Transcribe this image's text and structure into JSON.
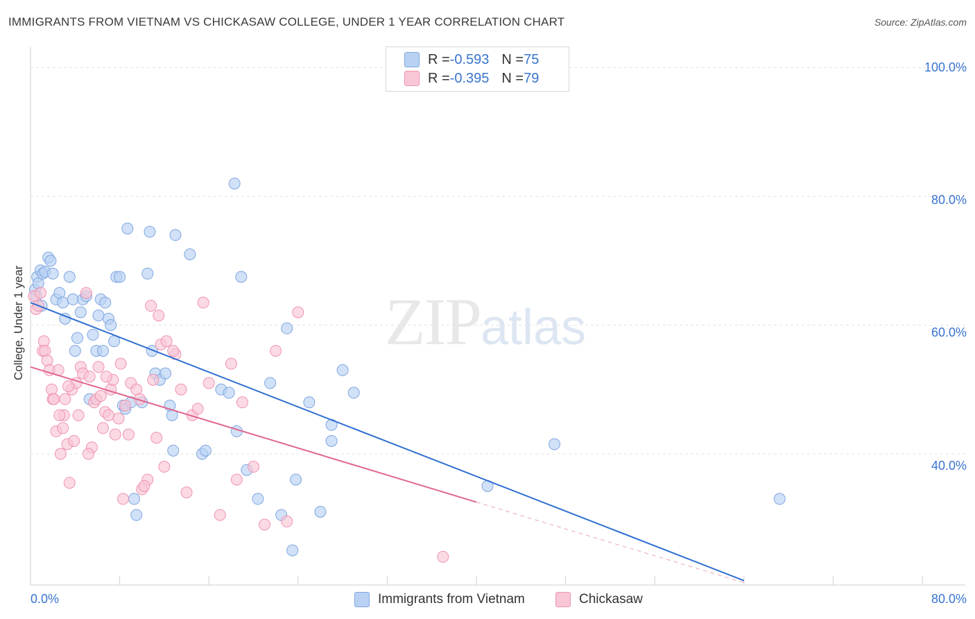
{
  "header": {
    "title": "IMMIGRANTS FROM VIETNAM VS CHICKASAW COLLEGE, UNDER 1 YEAR CORRELATION CHART",
    "source": "Source: ZipAtlas.com"
  },
  "watermark": {
    "zip": "ZIP",
    "atlas": "atlas"
  },
  "legend": {
    "rows": [
      {
        "r_label": "R = ",
        "r_value": "-0.593",
        "n_label": "N = ",
        "n_value": "75",
        "color": "#b9d1f2",
        "border": "#7ea6e0"
      },
      {
        "r_label": "R = ",
        "r_value": "-0.395",
        "n_label": "N = ",
        "n_value": "79",
        "color": "#f9c6d6",
        "border": "#ef93b2"
      }
    ]
  },
  "bottom_legend": {
    "series1": "Immigrants from Vietnam",
    "series2": "Chickasaw"
  },
  "axes": {
    "x_min_label": "0.0%",
    "x_max_label": "80.0%",
    "ylabel": "College, Under 1 year",
    "y_ticks": [
      "100.0%",
      "80.0%",
      "60.0%",
      "40.0%"
    ]
  },
  "chart_data": {
    "type": "scatter",
    "xlabel": "",
    "ylabel": "College, Under 1 year",
    "xlim": [
      0,
      80
    ],
    "ylim": [
      20,
      105
    ],
    "y_ticks": [
      40,
      60,
      80,
      100
    ],
    "grid": true,
    "legend_position": "top-center",
    "series": [
      {
        "name": "Immigrants from Vietnam",
        "color": "#7ea6e0",
        "fill": "#b9d1f2",
        "trend": {
          "x": [
            0,
            64
          ],
          "y": [
            63.5,
            20.3
          ],
          "color": "#2f6fd0"
        },
        "points": [
          [
            0.4,
            65.5
          ],
          [
            0.5,
            64.5
          ],
          [
            0.6,
            67.5
          ],
          [
            0.7,
            66.5
          ],
          [
            0.9,
            68.5
          ],
          [
            1.1,
            68.0
          ],
          [
            1.3,
            68.3
          ],
          [
            1.6,
            70.5
          ],
          [
            1.8,
            70.0
          ],
          [
            2.0,
            68.0
          ],
          [
            2.3,
            64.0
          ],
          [
            2.6,
            65.0
          ],
          [
            2.9,
            63.5
          ],
          [
            3.1,
            61.0
          ],
          [
            3.5,
            67.5
          ],
          [
            3.8,
            64.0
          ],
          [
            4.0,
            56.0
          ],
          [
            4.2,
            58.0
          ],
          [
            4.5,
            62.0
          ],
          [
            4.7,
            64.0
          ],
          [
            5.0,
            64.5
          ],
          [
            5.3,
            48.5
          ],
          [
            5.6,
            58.5
          ],
          [
            5.9,
            56.0
          ],
          [
            6.1,
            61.5
          ],
          [
            6.3,
            64.0
          ],
          [
            6.5,
            56.0
          ],
          [
            6.7,
            63.5
          ],
          [
            7.0,
            61.0
          ],
          [
            7.2,
            60.0
          ],
          [
            7.5,
            57.5
          ],
          [
            7.7,
            67.5
          ],
          [
            8.0,
            67.5
          ],
          [
            8.3,
            47.5
          ],
          [
            8.5,
            47.0
          ],
          [
            8.7,
            75.0
          ],
          [
            9.0,
            48.0
          ],
          [
            9.3,
            33.0
          ],
          [
            9.5,
            30.5
          ],
          [
            10.0,
            48.0
          ],
          [
            10.5,
            68.0
          ],
          [
            10.7,
            74.5
          ],
          [
            10.9,
            56.0
          ],
          [
            11.2,
            52.5
          ],
          [
            11.6,
            51.5
          ],
          [
            12.1,
            52.5
          ],
          [
            12.5,
            47.5
          ],
          [
            12.7,
            46.0
          ],
          [
            12.8,
            40.5
          ],
          [
            13.0,
            74.0
          ],
          [
            14.3,
            71.0
          ],
          [
            15.4,
            40.0
          ],
          [
            15.7,
            40.5
          ],
          [
            17.1,
            50.0
          ],
          [
            17.8,
            49.5
          ],
          [
            18.3,
            82.0
          ],
          [
            18.5,
            43.5
          ],
          [
            18.9,
            67.5
          ],
          [
            19.4,
            37.5
          ],
          [
            20.4,
            33.0
          ],
          [
            21.5,
            51.0
          ],
          [
            22.5,
            30.5
          ],
          [
            23.0,
            59.5
          ],
          [
            23.5,
            25.0
          ],
          [
            23.8,
            36.0
          ],
          [
            25.0,
            48.0
          ],
          [
            26.0,
            31.0
          ],
          [
            27.0,
            44.5
          ],
          [
            27.0,
            42.0
          ],
          [
            28.0,
            53.0
          ],
          [
            29.0,
            49.5
          ],
          [
            41.0,
            35.0
          ],
          [
            47.0,
            41.5
          ],
          [
            67.2,
            33.0
          ],
          [
            1.0,
            63.0
          ]
        ]
      },
      {
        "name": "Chickasaw",
        "color": "#ef93b2",
        "fill": "#f9c6d6",
        "trend": {
          "x": [
            0,
            40
          ],
          "y": [
            53.5,
            32.5
          ],
          "color": "#e0668f",
          "dash_to": [
            64,
            20
          ]
        },
        "points": [
          [
            0.3,
            64.5
          ],
          [
            0.5,
            62.5
          ],
          [
            0.7,
            63.0
          ],
          [
            0.9,
            65.0
          ],
          [
            1.1,
            56.0
          ],
          [
            1.2,
            57.5
          ],
          [
            1.3,
            56.0
          ],
          [
            1.5,
            54.5
          ],
          [
            1.7,
            53.0
          ],
          [
            1.9,
            50.0
          ],
          [
            2.0,
            48.5
          ],
          [
            2.1,
            48.5
          ],
          [
            2.3,
            43.5
          ],
          [
            2.5,
            53.0
          ],
          [
            2.7,
            40.0
          ],
          [
            2.9,
            44.0
          ],
          [
            3.0,
            46.0
          ],
          [
            3.1,
            48.5
          ],
          [
            3.3,
            41.5
          ],
          [
            3.5,
            35.5
          ],
          [
            3.7,
            50.0
          ],
          [
            3.9,
            42.0
          ],
          [
            4.1,
            51.0
          ],
          [
            4.3,
            46.0
          ],
          [
            4.5,
            53.5
          ],
          [
            4.7,
            52.5
          ],
          [
            5.0,
            65.0
          ],
          [
            5.3,
            52.0
          ],
          [
            5.5,
            41.0
          ],
          [
            5.7,
            48.0
          ],
          [
            5.9,
            48.5
          ],
          [
            6.1,
            53.5
          ],
          [
            6.3,
            49.0
          ],
          [
            6.5,
            44.0
          ],
          [
            6.7,
            46.5
          ],
          [
            7.0,
            46.0
          ],
          [
            7.2,
            50.0
          ],
          [
            7.4,
            51.5
          ],
          [
            7.6,
            43.0
          ],
          [
            7.9,
            45.5
          ],
          [
            8.1,
            54.0
          ],
          [
            8.3,
            33.0
          ],
          [
            8.5,
            47.5
          ],
          [
            8.8,
            43.0
          ],
          [
            9.0,
            51.0
          ],
          [
            9.5,
            50.0
          ],
          [
            10.0,
            34.5
          ],
          [
            10.5,
            36.0
          ],
          [
            10.8,
            63.0
          ],
          [
            11.0,
            51.5
          ],
          [
            11.3,
            42.5
          ],
          [
            11.5,
            61.5
          ],
          [
            11.7,
            57.0
          ],
          [
            12.0,
            38.0
          ],
          [
            12.2,
            57.5
          ],
          [
            13.0,
            55.5
          ],
          [
            13.5,
            50.0
          ],
          [
            14.0,
            34.0
          ],
          [
            14.5,
            46.0
          ],
          [
            15.0,
            47.0
          ],
          [
            15.5,
            63.5
          ],
          [
            16.0,
            51.0
          ],
          [
            17.0,
            30.5
          ],
          [
            18.0,
            54.0
          ],
          [
            18.5,
            36.0
          ],
          [
            19.0,
            48.0
          ],
          [
            20.0,
            38.0
          ],
          [
            21.0,
            29.0
          ],
          [
            22.0,
            56.0
          ],
          [
            23.0,
            29.5
          ],
          [
            24.0,
            62.0
          ],
          [
            5.2,
            40.0
          ],
          [
            2.6,
            46.0
          ],
          [
            10.2,
            35.0
          ],
          [
            12.8,
            56.0
          ],
          [
            6.8,
            52.0
          ],
          [
            9.8,
            48.5
          ],
          [
            3.4,
            50.5
          ],
          [
            37.0,
            24.0
          ]
        ]
      }
    ]
  }
}
